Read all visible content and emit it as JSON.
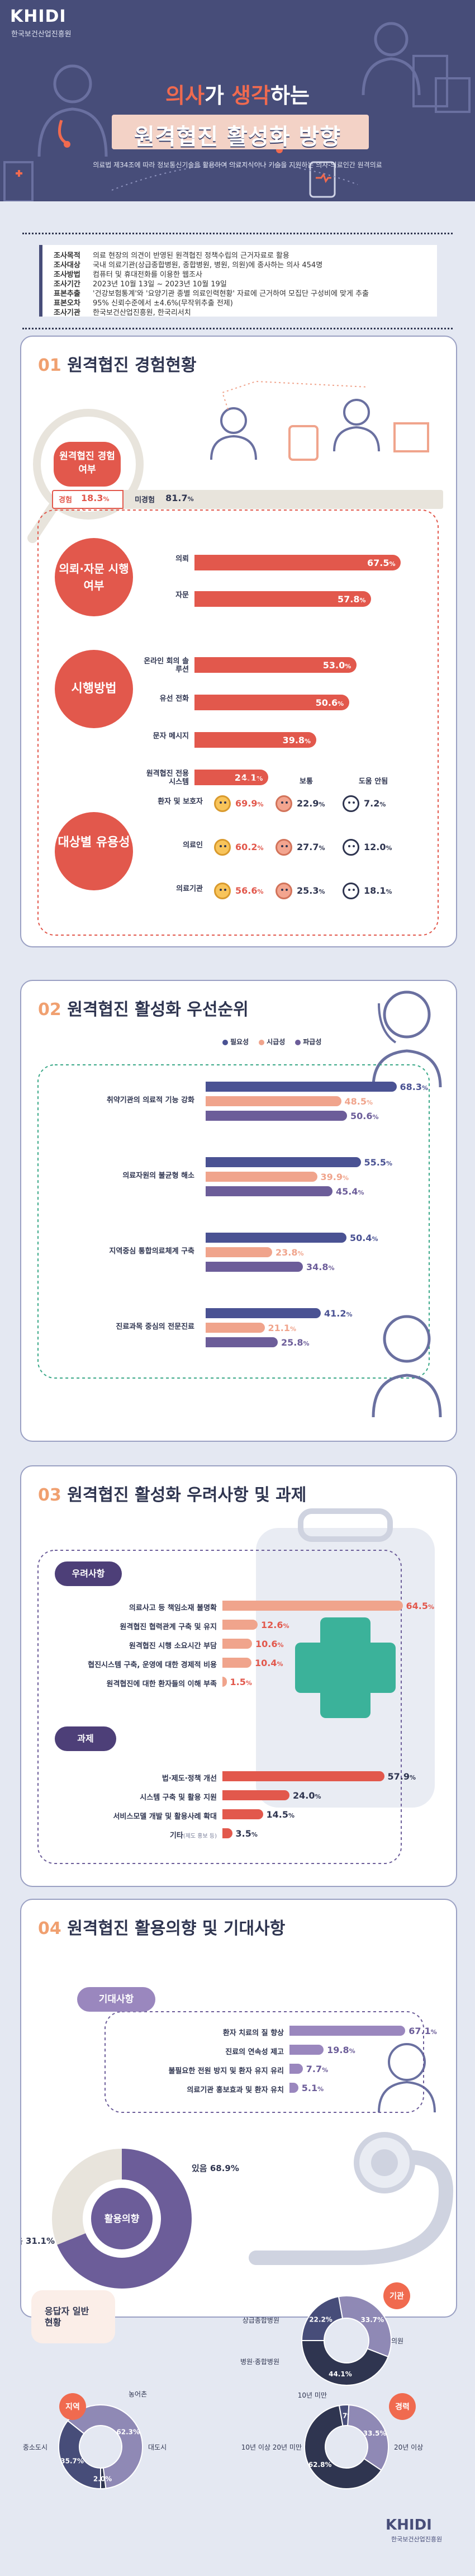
{
  "header": {
    "logo": "KHIDI",
    "logo_sub": "한국보건산업진흥원",
    "title1_a": "의사",
    "title1_b": "가 ",
    "title1_c": "생각",
    "title1_d": "하는",
    "title2": "원격협진 활성화 방향",
    "desc": "의료법 제34조에 따라 정보통신기술을 활용하여 의료지식이나 기술을 지원하는 의사-의료인간 원격의료"
  },
  "survey": [
    {
      "k": "조사목적",
      "v": "의료 현장의 의견이 반영된 원격협진 정책수립의 근거자료로 활용"
    },
    {
      "k": "조사대상",
      "v": "국내 의료기관(상급종합병원, 종합병원, 병원, 의원)에 종사하는 의사 454명"
    },
    {
      "k": "조사방법",
      "v": "컴퓨터 및 휴대전화를 이용한 웹조사"
    },
    {
      "k": "조사기간",
      "v": "2023년 10월 13일 ~ 2023년 10월 19일"
    },
    {
      "k": "표본추출",
      "v": "'건강보험통계'와 '요양기관 종별 의료인력현황' 자료에 근거하여 모집단 구성비에 맞게 추출"
    },
    {
      "k": "표본오차",
      "v": "95% 신뢰수준에서 ±4.6%(무작위추출 전제)"
    },
    {
      "k": "조사기관",
      "v": "한국보건산업진흥원, 한국리서치"
    }
  ],
  "s1": {
    "num": "01",
    "title": "원격협진 경험현황",
    "exp_label": "원격협진 경험 여부",
    "exp_yes": "경험",
    "exp_yes_val": "18.3",
    "exp_no": "미경험",
    "exp_no_val": "81.7",
    "consult_label": "의뢰·자문 시행여부",
    "method_label": "시행방법",
    "target_label": "대상별 유용성",
    "useful_cols": [
      "도움됨",
      "보통",
      "도움 안됨"
    ],
    "useful": [
      {
        "label": "환자 및 보호자",
        "vals": [
          "69.9",
          "22.9",
          "7.2"
        ]
      },
      {
        "label": "의료인",
        "vals": [
          "60.2",
          "27.7",
          "12.0"
        ]
      },
      {
        "label": "의료기관",
        "vals": [
          "56.6",
          "25.3",
          "18.1"
        ]
      }
    ]
  },
  "s2": {
    "num": "02",
    "title": "원격협진 활성화 우선순위"
  },
  "s3": {
    "num": "03",
    "title": "원격협진 활성화 우려사항 및 과제",
    "concern_label": "우려사항",
    "task_label": "과제"
  },
  "s4": {
    "num": "04",
    "title": "원격협진 활용의향 및 기대사항",
    "expect_label": "기대사항",
    "intent_label": "활용의향",
    "intent_yes": "있음",
    "intent_no": "없음"
  },
  "s5": {
    "title": "응답자 일반현황",
    "inst_label": "기관",
    "region_label": "지역",
    "career_label": "경력"
  },
  "footer": {
    "logo": "KHIDI",
    "logo_sub": "한국보건산업진흥원"
  },
  "unit": "%",
  "chart_data": [
    {
      "type": "bar",
      "title": "원격협진 경험 여부",
      "categories": [
        "경험",
        "미경험"
      ],
      "values": [
        18.3,
        81.7
      ]
    },
    {
      "type": "bar",
      "title": "의뢰·자문 시행여부",
      "categories": [
        "의뢰",
        "자문"
      ],
      "values": [
        67.5,
        57.8
      ]
    },
    {
      "type": "bar",
      "title": "시행방법",
      "categories": [
        "온라인 회의 솔루션",
        "유선 전화",
        "문자 메시지",
        "원격협진 전용시스템"
      ],
      "values": [
        53.0,
        50.6,
        39.8,
        24.1
      ]
    },
    {
      "type": "table",
      "title": "대상별 유용성",
      "columns": [
        "도움됨",
        "보통",
        "도움 안됨"
      ],
      "rows": [
        "환자 및 보호자",
        "의료인",
        "의료기관"
      ],
      "values": [
        [
          69.9,
          22.9,
          7.2
        ],
        [
          60.2,
          27.7,
          12.0
        ],
        [
          56.6,
          25.3,
          18.1
        ]
      ]
    },
    {
      "type": "bar",
      "title": "원격협진 활성화 우선순위",
      "categories": [
        "취약기관의 의료적 기능 강화",
        "의료자원의 불균형 해소",
        "지역중심 통합의료체계 구축",
        "진료과목 중심의 전문진료"
      ],
      "series": [
        {
          "name": "필요성",
          "values": [
            68.3,
            55.5,
            50.4,
            41.2
          ]
        },
        {
          "name": "시급성",
          "values": [
            48.5,
            39.9,
            23.8,
            21.1
          ]
        },
        {
          "name": "파급성",
          "values": [
            50.6,
            45.4,
            34.8,
            25.8
          ]
        }
      ]
    },
    {
      "type": "bar",
      "title": "우려사항",
      "categories": [
        "의료사고 등 책임소재 불명확",
        "원격협진 협력관계 구축 및 유지",
        "원격협진 시행 소요시간 부담",
        "협진시스템 구축, 운영에 대한 경제적 비용",
        "원격협진에 대한 환자들의 이해 부족"
      ],
      "values": [
        64.5,
        12.6,
        10.6,
        10.4,
        1.5
      ]
    },
    {
      "type": "bar",
      "title": "과제",
      "categories": [
        "법·제도·정책 개선",
        "시스템 구축 및 활용 지원",
        "서비스모델 개발 및 활용사례 확대",
        "기타"
      ],
      "category_notes": [
        "",
        "",
        "",
        "(제도 홍보 등)"
      ],
      "values": [
        57.9,
        24.0,
        14.5,
        3.5
      ]
    },
    {
      "type": "bar",
      "title": "기대사항",
      "categories": [
        "환자 치료의 질 향상",
        "진료의 연속성 제고",
        "불필요한 전원 방지 및 환자 유지 유리",
        "의료기관 홍보효과 및 환자 유치"
      ],
      "values": [
        67.1,
        19.8,
        7.7,
        5.1
      ]
    },
    {
      "type": "pie",
      "title": "활용의향",
      "categories": [
        "있음",
        "없음"
      ],
      "values": [
        68.9,
        31.1
      ]
    },
    {
      "type": "pie",
      "title": "기관",
      "categories": [
        "상급종합병원",
        "병원·종합병원",
        "의원"
      ],
      "values": [
        22.2,
        33.7,
        44.1
      ]
    },
    {
      "type": "pie",
      "title": "지역",
      "categories": [
        "중소도시",
        "대도시",
        "농어촌"
      ],
      "values": [
        35.7,
        62.3,
        2.0
      ]
    },
    {
      "type": "pie",
      "title": "경력",
      "categories": [
        "10년 미만",
        "10년 이상 20년 미만",
        "20년 이상"
      ],
      "values": [
        3.7,
        33.5,
        62.8
      ]
    }
  ],
  "colors": {
    "navy": "#474d79",
    "red": "#e2584c",
    "salmon": "#f0a48c",
    "purple": "#6c5d99",
    "lilac": "#9a87be",
    "bg": "#e4e8f2",
    "beige": "#e8e4dc"
  }
}
